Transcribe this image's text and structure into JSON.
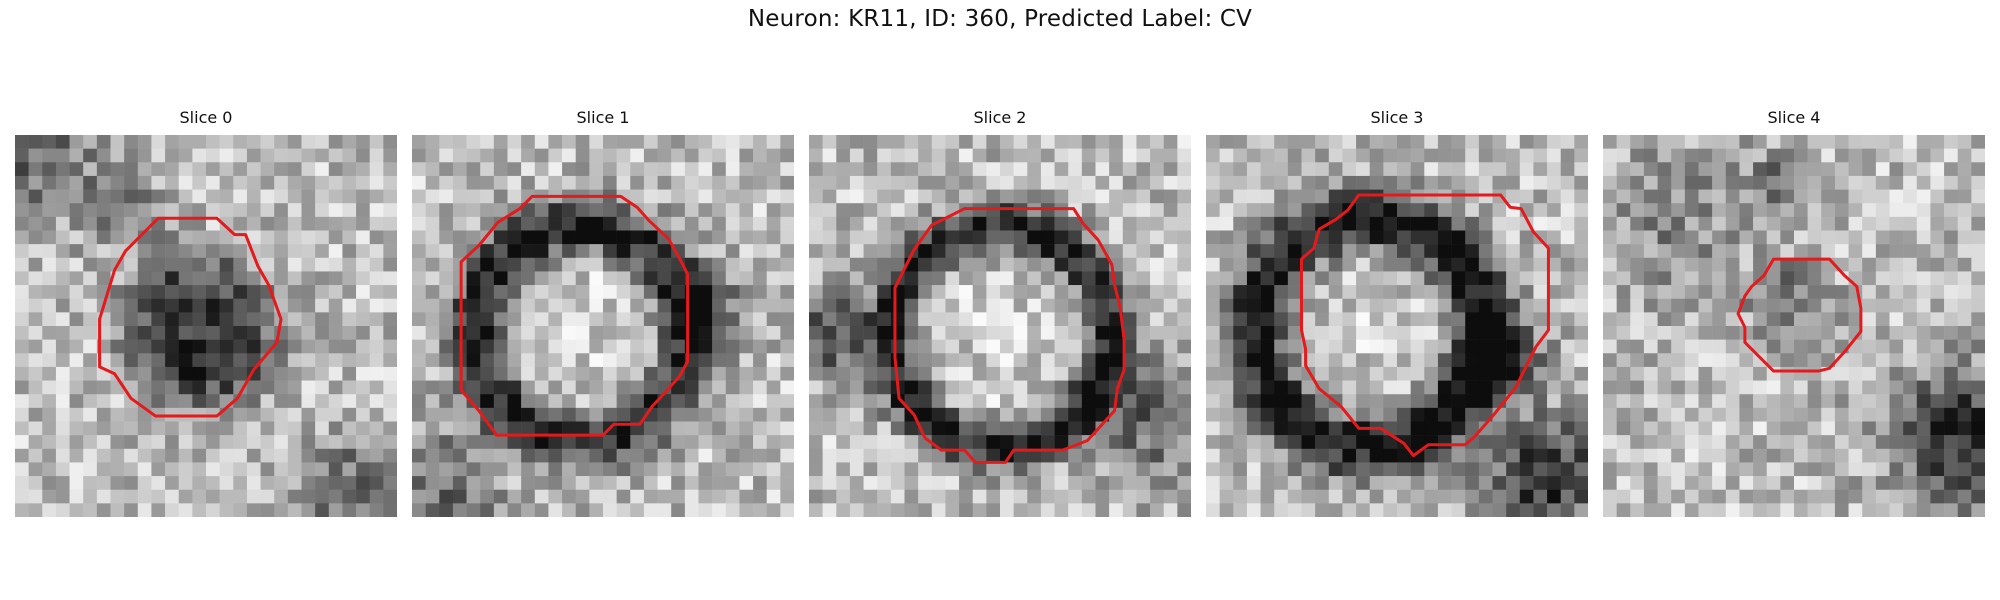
{
  "figure": {
    "title": "Neuron: KR11, ID: 360, Predicted Label: CV",
    "contour_color": "#e41a1c"
  },
  "panels": [
    {
      "title": "Slice 0"
    },
    {
      "title": "Slice 1"
    },
    {
      "title": "Slice 2"
    },
    {
      "title": "Slice 3"
    },
    {
      "title": "Slice 4"
    }
  ]
}
